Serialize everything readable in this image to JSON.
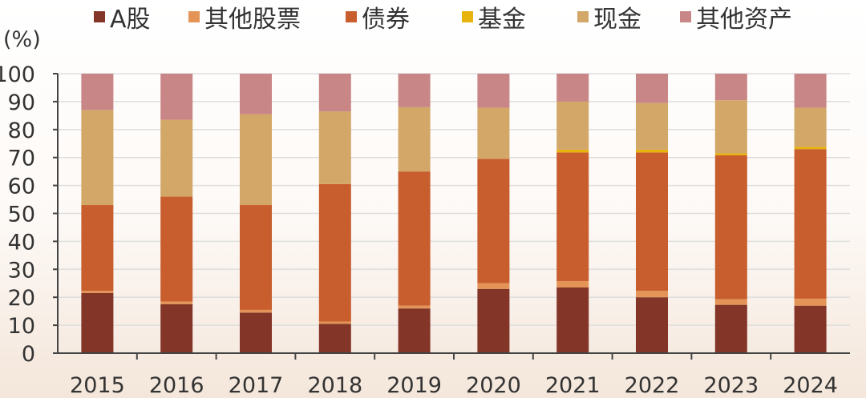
{
  "chart_data": {
    "type": "bar",
    "stacked": true,
    "title": "",
    "xlabel": "",
    "ylabel": "(%)",
    "ylim": [
      0,
      100
    ],
    "yticks": [
      0,
      10,
      20,
      30,
      40,
      50,
      60,
      70,
      80,
      90,
      100
    ],
    "grid": true,
    "legend_position": "top",
    "categories": [
      "2015",
      "2016",
      "2017",
      "2018",
      "2019",
      "2020",
      "2021",
      "2022",
      "2023",
      "2024"
    ],
    "series": [
      {
        "name": "A股",
        "color": "#833528",
        "values": [
          21.5,
          17.5,
          14.5,
          10.5,
          16,
          23,
          23.5,
          20,
          17.3,
          17
        ]
      },
      {
        "name": "其他股票",
        "color": "#E39456",
        "values": [
          0.8,
          1,
          1,
          0.8,
          1,
          2,
          2.3,
          2.3,
          2,
          2.5
        ]
      },
      {
        "name": "债券",
        "color": "#C85D2E",
        "values": [
          30.7,
          37.5,
          37.5,
          49.2,
          48,
          44.5,
          46,
          49.5,
          51.5,
          53.5
        ]
      },
      {
        "name": "基金",
        "color": "#E7B30F",
        "values": [
          0,
          0,
          0,
          0,
          0,
          0,
          1,
          1,
          0.7,
          0.8
        ]
      },
      {
        "name": "现金",
        "color": "#D2A767",
        "values": [
          34,
          27.5,
          32.5,
          26,
          23,
          18.3,
          17.2,
          16.7,
          19,
          14
        ]
      },
      {
        "name": "其他资产",
        "color": "#C98686",
        "values": [
          13,
          16.5,
          14.5,
          13.5,
          12,
          12.2,
          10,
          10.5,
          9.5,
          12.2
        ]
      }
    ]
  }
}
